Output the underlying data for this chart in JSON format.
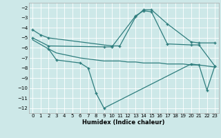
{
  "xlabel": "Humidex (Indice chaleur)",
  "bg_color": "#cde8e8",
  "grid_color": "#ffffff",
  "line_color": "#2e7d7d",
  "xlim": [
    -0.5,
    23.5
  ],
  "ylim": [
    -12.5,
    -1.5
  ],
  "xticks": [
    0,
    1,
    2,
    3,
    4,
    5,
    6,
    7,
    8,
    9,
    10,
    11,
    12,
    13,
    14,
    15,
    16,
    17,
    18,
    19,
    20,
    21,
    22,
    23
  ],
  "yticks": [
    -2,
    -3,
    -4,
    -5,
    -6,
    -7,
    -8,
    -9,
    -10,
    -11,
    -12
  ],
  "line1_x": [
    0,
    1,
    2,
    10,
    11,
    13,
    14,
    15,
    17,
    20,
    21,
    23
  ],
  "line1_y": [
    -4.2,
    -4.7,
    -5.0,
    -5.8,
    -5.8,
    -2.9,
    -2.2,
    -2.2,
    -3.6,
    -5.4,
    -5.5,
    -5.5
  ],
  "line2_x": [
    0,
    2,
    9,
    10,
    13,
    14,
    15,
    17,
    20,
    21,
    23
  ],
  "line2_y": [
    -5.0,
    -5.8,
    -5.9,
    -5.9,
    -2.8,
    -2.3,
    -2.4,
    -5.6,
    -5.7,
    -5.7,
    -7.8
  ],
  "line3_x": [
    2,
    3,
    6,
    7,
    8,
    9,
    20,
    21,
    22,
    23
  ],
  "line3_y": [
    -6.1,
    -7.2,
    -7.5,
    -8.0,
    -10.5,
    -12.0,
    -7.6,
    -7.7,
    -10.2,
    -7.8
  ],
  "line4_x": [
    0,
    2,
    3,
    6,
    9,
    10,
    11,
    12,
    13,
    14,
    15,
    16,
    17,
    18,
    19,
    20,
    21,
    23
  ],
  "line4_y": [
    -5.2,
    -6.1,
    -6.5,
    -7.0,
    -7.3,
    -7.3,
    -7.3,
    -7.4,
    -7.4,
    -7.5,
    -7.5,
    -7.5,
    -7.6,
    -7.6,
    -7.6,
    -7.7,
    -7.7,
    -7.9
  ]
}
